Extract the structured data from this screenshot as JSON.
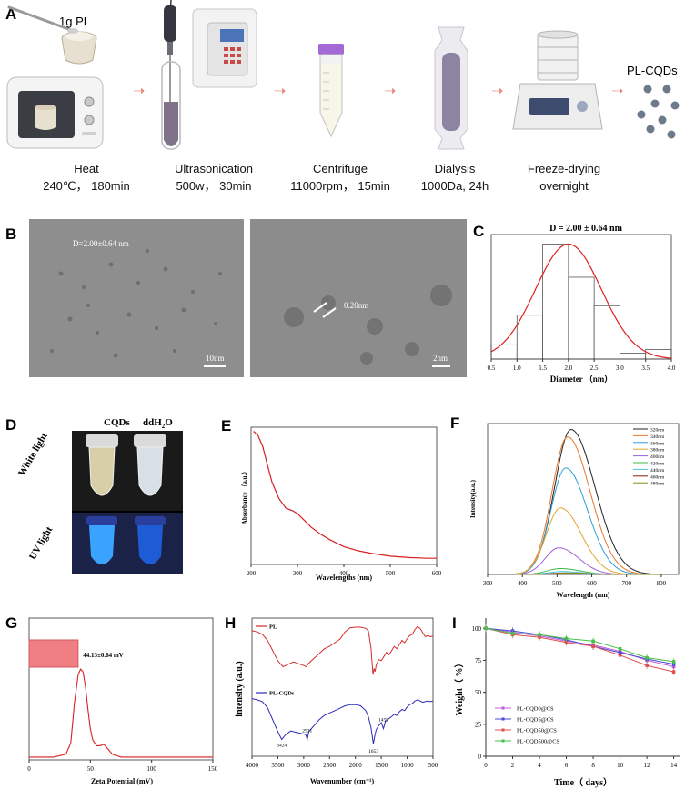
{
  "panels": {
    "A": "A",
    "B": "B",
    "C": "C",
    "D": "D",
    "E": "E",
    "F": "F",
    "G": "G",
    "H": "H",
    "I": "I"
  },
  "workflow": {
    "pl_amount": "1g PL",
    "product": "PL-CQDs",
    "steps": [
      {
        "name": "Heat",
        "detail": "240℃， 180min"
      },
      {
        "name": "Ultrasonication",
        "detail": "500w， 30min"
      },
      {
        "name": "Centrifuge",
        "detail": "11000rpm， 15min"
      },
      {
        "name": "Dialysis",
        "detail": "1000Da, 24h"
      },
      {
        "name": "Freeze-drying",
        "detail": "overnight"
      }
    ]
  },
  "tem": {
    "left_label": "D=2.00±0.64 nm",
    "left_scale": "10nm",
    "right_label": "0.20nm",
    "right_scale": "2nm"
  },
  "photo": {
    "col1": "CQDs",
    "col2_main": "ddH",
    "col2_sub": "2",
    "col2_end": "O",
    "row1": "White light",
    "row2": "UV light"
  },
  "chart_data": [
    {
      "id": "C",
      "type": "bar",
      "title": "D = 2.00 ± 0.64 nm",
      "xlabel": "Diameter （nm）",
      "ylabel": "",
      "bin_edges": [
        0.5,
        1.0,
        1.5,
        2.0,
        2.5,
        3.0,
        3.5,
        4.0
      ],
      "values": [
        0.12,
        0.37,
        0.97,
        0.69,
        0.45,
        0.05,
        0.08
      ],
      "xticks": [
        "0.5",
        "1.0",
        "1.5",
        "2.0",
        "2.5",
        "3.0",
        "3.5",
        "4.0"
      ],
      "fit": {
        "type": "gaussian",
        "mean": 2.0,
        "sd": 0.64,
        "peak": 0.97
      }
    },
    {
      "id": "E",
      "type": "line",
      "xlabel": "Wavelengths (nm)",
      "ylabel": "Absorbance （a.u.）",
      "xlim": [
        200,
        600
      ],
      "ylim": [
        0,
        1
      ],
      "xticks": [
        "200",
        "300",
        "400",
        "500",
        "600"
      ],
      "x": [
        205,
        215,
        225,
        235,
        245,
        260,
        275,
        290,
        300,
        315,
        330,
        350,
        370,
        400,
        430,
        460,
        500,
        540,
        580,
        600
      ],
      "y": [
        0.97,
        0.94,
        0.86,
        0.73,
        0.6,
        0.48,
        0.41,
        0.39,
        0.37,
        0.32,
        0.27,
        0.22,
        0.18,
        0.13,
        0.1,
        0.08,
        0.06,
        0.05,
        0.045,
        0.045
      ]
    },
    {
      "id": "F",
      "type": "line",
      "xlabel": "Wavelength (nm)",
      "ylabel": "Intensity(a.u.)",
      "xlim": [
        300,
        850
      ],
      "ylim": [
        0,
        1
      ],
      "xticks": [
        "300",
        "400",
        "500",
        "600",
        "700",
        "800"
      ],
      "series": [
        {
          "name": "320nm",
          "color": "#222222",
          "peak_x": 540,
          "peak_y": 0.98,
          "width": 55
        },
        {
          "name": "340nm",
          "color": "#e8762b",
          "peak_x": 530,
          "peak_y": 0.93,
          "width": 52
        },
        {
          "name": "360nm",
          "color": "#2d9fd4",
          "peak_x": 525,
          "peak_y": 0.72,
          "width": 50
        },
        {
          "name": "380nm",
          "color": "#e0a52b",
          "peak_x": 510,
          "peak_y": 0.45,
          "width": 48
        },
        {
          "name": "400nm",
          "color": "#9d5fd6",
          "peak_x": 505,
          "peak_y": 0.18,
          "width": 46
        },
        {
          "name": "420nm",
          "color": "#3cb84a",
          "peak_x": 510,
          "peak_y": 0.04,
          "width": 45
        },
        {
          "name": "440nm",
          "color": "#48c7e6",
          "peak_x": 515,
          "peak_y": 0.02,
          "width": 45
        },
        {
          "name": "460nm",
          "color": "#8c1a1a",
          "peak_x": 520,
          "peak_y": 0.01,
          "width": 45
        },
        {
          "name": "480nm",
          "color": "#8a8a1c",
          "peak_x": 530,
          "peak_y": 0.01,
          "width": 45
        }
      ]
    },
    {
      "id": "G",
      "type": "line",
      "xlabel": "Zeta Potential (mV)",
      "ylabel": "",
      "xlim": [
        0,
        150
      ],
      "ylim": [
        0,
        1
      ],
      "xticks": [
        "0",
        "50",
        "100",
        "150"
      ],
      "annotation": "44.13±0.64 mV",
      "x": [
        0,
        20,
        30,
        34,
        37,
        40,
        42,
        44,
        46,
        48,
        50,
        52,
        55,
        58,
        61,
        64,
        68,
        75,
        85,
        100,
        150
      ],
      "y": [
        0.02,
        0.02,
        0.04,
        0.12,
        0.4,
        0.6,
        0.64,
        0.62,
        0.52,
        0.36,
        0.22,
        0.14,
        0.1,
        0.1,
        0.11,
        0.08,
        0.04,
        0.02,
        0.02,
        0.02,
        0.02
      ]
    },
    {
      "id": "H",
      "type": "line",
      "xlabel": "Wavenumber (cm⁻¹)",
      "ylabel": "intensity  (a.u.)",
      "xlim": [
        4000,
        500
      ],
      "xticks": [
        "4000",
        "3500",
        "3000",
        "2500",
        "2000",
        "1500",
        "1000",
        "500"
      ],
      "series": [
        {
          "name": "PL",
          "color": "#d62b2b",
          "x": [
            4000,
            3900,
            3800,
            3700,
            3600,
            3500,
            3400,
            3300,
            3200,
            3100,
            3000,
            2950,
            2900,
            2800,
            2700,
            2600,
            2500,
            2400,
            2300,
            2200,
            2100,
            2000,
            1900,
            1800,
            1750,
            1700,
            1660,
            1640,
            1620,
            1600,
            1550,
            1500,
            1450,
            1400,
            1350,
            1300,
            1250,
            1200,
            1150,
            1100,
            1050,
            1000,
            950,
            900,
            850,
            800,
            750,
            700,
            650,
            600,
            550,
            500
          ],
          "y": [
            0.88,
            0.86,
            0.82,
            0.72,
            0.55,
            0.38,
            0.28,
            0.32,
            0.36,
            0.33,
            0.3,
            0.28,
            0.34,
            0.42,
            0.5,
            0.58,
            0.62,
            0.68,
            0.74,
            0.86,
            0.93,
            0.94,
            0.94,
            0.92,
            0.88,
            0.6,
            0.15,
            0.25,
            0.2,
            0.3,
            0.4,
            0.38,
            0.45,
            0.52,
            0.48,
            0.55,
            0.62,
            0.58,
            0.65,
            0.72,
            0.68,
            0.75,
            0.8,
            0.82,
            0.9,
            0.95,
            0.92,
            0.85,
            0.78,
            0.8,
            0.78,
            0.79
          ]
        },
        {
          "name": "PL-CQDs",
          "color": "#2b2bb8",
          "x": [
            4000,
            3900,
            3800,
            3700,
            3600,
            3500,
            3424,
            3350,
            3250,
            3150,
            3050,
            2960,
            2931,
            2900,
            2800,
            2700,
            2600,
            2500,
            2400,
            2300,
            2200,
            2100,
            2000,
            1900,
            1800,
            1750,
            1700,
            1653,
            1620,
            1600,
            1550,
            1500,
            1459,
            1420,
            1380,
            1300,
            1250,
            1200,
            1150,
            1100,
            1050,
            1000,
            950,
            900,
            850,
            800,
            750,
            700,
            650,
            600,
            550,
            500
          ],
          "y": [
            0.9,
            0.88,
            0.85,
            0.75,
            0.55,
            0.35,
            0.22,
            0.3,
            0.36,
            0.34,
            0.32,
            0.3,
            0.22,
            0.35,
            0.45,
            0.55,
            0.62,
            0.66,
            0.7,
            0.74,
            0.78,
            0.8,
            0.8,
            0.78,
            0.7,
            0.6,
            0.42,
            0.15,
            0.3,
            0.38,
            0.45,
            0.5,
            0.4,
            0.52,
            0.55,
            0.6,
            0.64,
            0.62,
            0.68,
            0.72,
            0.7,
            0.76,
            0.8,
            0.82,
            0.86,
            0.88,
            0.86,
            0.84,
            0.85,
            0.86,
            0.85,
            0.86
          ]
        }
      ],
      "annotations": [
        "3424",
        "2931",
        "1653",
        "1459"
      ]
    },
    {
      "id": "I",
      "type": "line",
      "xlabel": "Time（ days）",
      "ylabel": "Weight（ %）",
      "xlim": [
        0,
        14
      ],
      "ylim": [
        0,
        100
      ],
      "xticks": [
        "0",
        "2",
        "4",
        "6",
        "8",
        "10",
        "12",
        "14"
      ],
      "yticks": [
        "0",
        "25",
        "50",
        "75",
        "100"
      ],
      "x": [
        0,
        2,
        4,
        6,
        8,
        10,
        12,
        14
      ],
      "series": [
        {
          "name": "PL-CQD0@CS",
          "color": "#c060d8",
          "values": [
            100,
            97,
            94,
            90,
            87,
            82,
            75,
            70
          ]
        },
        {
          "name": "PL-CQD5@CS",
          "color": "#4a4ad8",
          "values": [
            100,
            98,
            95,
            91,
            86,
            81,
            76,
            72
          ]
        },
        {
          "name": "PL-CQD50@CS",
          "color": "#e05050",
          "values": [
            100,
            95,
            93,
            89,
            86,
            79,
            71,
            66
          ]
        },
        {
          "name": "PL-CQD500@CS",
          "color": "#48c048",
          "values": [
            100,
            96,
            95,
            92,
            90,
            84,
            77,
            74
          ]
        }
      ]
    }
  ]
}
